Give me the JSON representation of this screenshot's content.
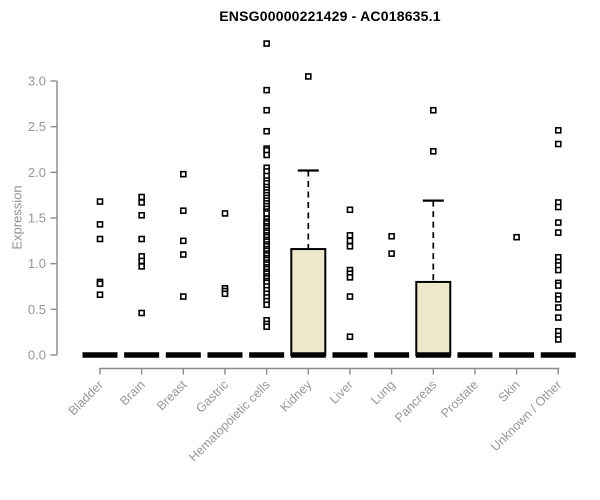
{
  "title": "ENSG00000221429 - AC018635.1",
  "chart_data": {
    "type": "boxplot",
    "title": "ENSG00000221429 - AC018635.1",
    "ylabel": "Expression",
    "xlabel": "",
    "ylim": [
      0.0,
      3.5
    ],
    "yticks": [
      0.0,
      0.5,
      1.0,
      1.5,
      2.0,
      2.5,
      3.0
    ],
    "grid": false,
    "legend": "none",
    "colors": {
      "box_fill": "#ede7cc",
      "box_border": "#000000",
      "median_bar": "#000000",
      "outlier": "#000000",
      "axis": "#8a8a8a",
      "tick_label": "#979797",
      "title_text": "#000000"
    },
    "categories": [
      "Bladder",
      "Brain",
      "Breast",
      "Gastric",
      "Hematopoietic cells",
      "Kidney",
      "Liver",
      "Lung",
      "Pancreas",
      "Prostate",
      "Skin",
      "Unknown / Other"
    ],
    "series": [
      {
        "name": "Bladder",
        "median": 0,
        "q1": 0,
        "q3": 0,
        "whisker_low": 0,
        "whisker_high": 0,
        "outliers": [
          1.68,
          1.43,
          1.27,
          0.8,
          0.78,
          0.66
        ]
      },
      {
        "name": "Brain",
        "median": 0,
        "q1": 0,
        "q3": 0,
        "whisker_low": 0,
        "whisker_high": 0,
        "outliers": [
          1.73,
          1.67,
          1.53,
          1.27,
          1.08,
          1.03,
          0.97,
          0.46
        ]
      },
      {
        "name": "Breast",
        "median": 0,
        "q1": 0,
        "q3": 0,
        "whisker_low": 0,
        "whisker_high": 0,
        "outliers": [
          1.98,
          1.58,
          1.25,
          1.1,
          0.64
        ]
      },
      {
        "name": "Gastric",
        "median": 0,
        "q1": 0,
        "q3": 0,
        "whisker_low": 0,
        "whisker_high": 0,
        "outliers": [
          1.55,
          0.73,
          0.7,
          0.67
        ]
      },
      {
        "name": "Hematopoietic cells",
        "median": 0,
        "q1": 0,
        "q3": 0,
        "whisker_low": 0,
        "whisker_high": 0,
        "outliers": [
          3.41,
          2.9,
          2.68,
          2.45,
          2.26,
          2.24,
          2.19,
          2.05,
          2.01,
          1.96,
          1.91,
          1.88,
          1.84,
          1.81,
          1.78,
          1.75,
          1.72,
          1.69,
          1.66,
          1.63,
          1.6,
          1.57,
          1.55,
          1.49,
          1.46,
          1.44,
          1.41,
          1.39,
          1.36,
          1.34,
          1.31,
          1.29,
          1.26,
          1.24,
          1.21,
          1.19,
          1.16,
          1.14,
          1.11,
          1.09,
          1.06,
          1.04,
          1.01,
          0.99,
          0.96,
          0.94,
          0.91,
          0.89,
          0.86,
          0.84,
          0.81,
          0.79,
          0.75,
          0.71,
          0.67,
          0.63,
          0.59,
          0.55,
          0.38,
          0.34,
          0.31
        ]
      },
      {
        "name": "Kidney",
        "median": 0,
        "q1": 0,
        "q3": 1.16,
        "whisker_low": 0,
        "whisker_high": 2.02,
        "outliers": [
          3.05
        ]
      },
      {
        "name": "Liver",
        "median": 0,
        "q1": 0,
        "q3": 0,
        "whisker_low": 0,
        "whisker_high": 0,
        "outliers": [
          1.59,
          1.31,
          1.25,
          1.19,
          0.93,
          0.89,
          0.85,
          0.64,
          0.2
        ]
      },
      {
        "name": "Lung",
        "median": 0,
        "q1": 0,
        "q3": 0,
        "whisker_low": 0,
        "whisker_high": 0,
        "outliers": [
          1.3,
          1.11
        ]
      },
      {
        "name": "Pancreas",
        "median": 0,
        "q1": 0,
        "q3": 0.8,
        "whisker_low": 0,
        "whisker_high": 1.69,
        "outliers": [
          2.68,
          2.23
        ]
      },
      {
        "name": "Prostate",
        "median": 0,
        "q1": 0,
        "q3": 0,
        "whisker_low": 0,
        "whisker_high": 0,
        "outliers": []
      },
      {
        "name": "Skin",
        "median": 0,
        "q1": 0,
        "q3": 0,
        "whisker_low": 0,
        "whisker_high": 0,
        "outliers": [
          1.29
        ]
      },
      {
        "name": "Unknown / Other",
        "median": 0,
        "q1": 0,
        "q3": 0,
        "whisker_low": 0,
        "whisker_high": 0,
        "outliers": [
          2.46,
          2.31,
          1.67,
          1.62,
          1.45,
          1.34,
          1.07,
          1.02,
          0.98,
          0.93,
          0.79,
          0.76,
          0.65,
          0.61,
          0.52,
          0.41,
          0.26,
          0.21,
          0.17
        ]
      }
    ]
  }
}
